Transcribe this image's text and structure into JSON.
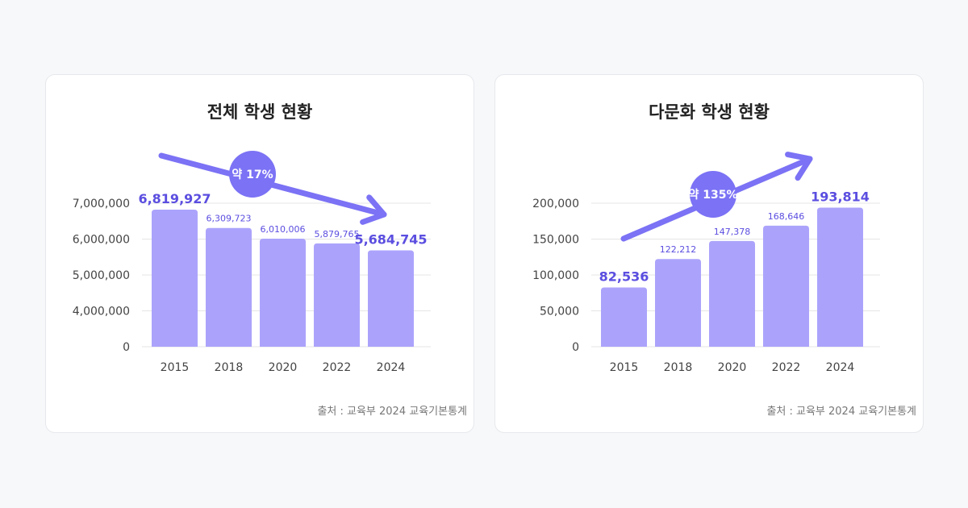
{
  "colors": {
    "bar": "#aba3fb",
    "label": "#5b4ee0",
    "arrow": "#7b72f5",
    "grid": "#e5e5e5",
    "axis_text": "#444"
  },
  "chart_data": [
    {
      "type": "bar",
      "title": "전체 학생 현황",
      "categories": [
        "2015",
        "2018",
        "2020",
        "2022",
        "2024"
      ],
      "values": [
        6819927,
        6309723,
        6010006,
        5879765,
        5684745
      ],
      "value_labels": [
        "6,819,927",
        "6,309,723",
        "6,010,006",
        "5,879,765",
        "5,684,745"
      ],
      "highlight": [
        true,
        false,
        false,
        false,
        true
      ],
      "yticks": [
        0,
        4000000,
        5000000,
        6000000,
        7000000
      ],
      "ytick_labels": [
        "0",
        "4,000,000",
        "5,000,000",
        "6,000,000",
        "7,000,000"
      ],
      "y_axis_break": [
        0,
        4000000
      ],
      "ylim": [
        0,
        7000000
      ],
      "grid": true,
      "annotation": {
        "text": "약 17%",
        "direction": "down"
      },
      "source": "출처 : 교육부 2024 교육기본통계"
    },
    {
      "type": "bar",
      "title": "다문화 학생 현황",
      "categories": [
        "2015",
        "2018",
        "2020",
        "2022",
        "2024"
      ],
      "values": [
        82536,
        122212,
        147378,
        168646,
        193814
      ],
      "value_labels": [
        "82,536",
        "122,212",
        "147,378",
        "168,646",
        "193,814"
      ],
      "highlight": [
        true,
        false,
        false,
        false,
        true
      ],
      "yticks": [
        0,
        50000,
        100000,
        150000,
        200000
      ],
      "ytick_labels": [
        "0",
        "50,000",
        "100,000",
        "150,000",
        "200,000"
      ],
      "ylim": [
        0,
        200000
      ],
      "grid": true,
      "annotation": {
        "text": "약 135%",
        "direction": "up"
      },
      "source": "출처 : 교육부 2024 교육기본통계"
    }
  ]
}
